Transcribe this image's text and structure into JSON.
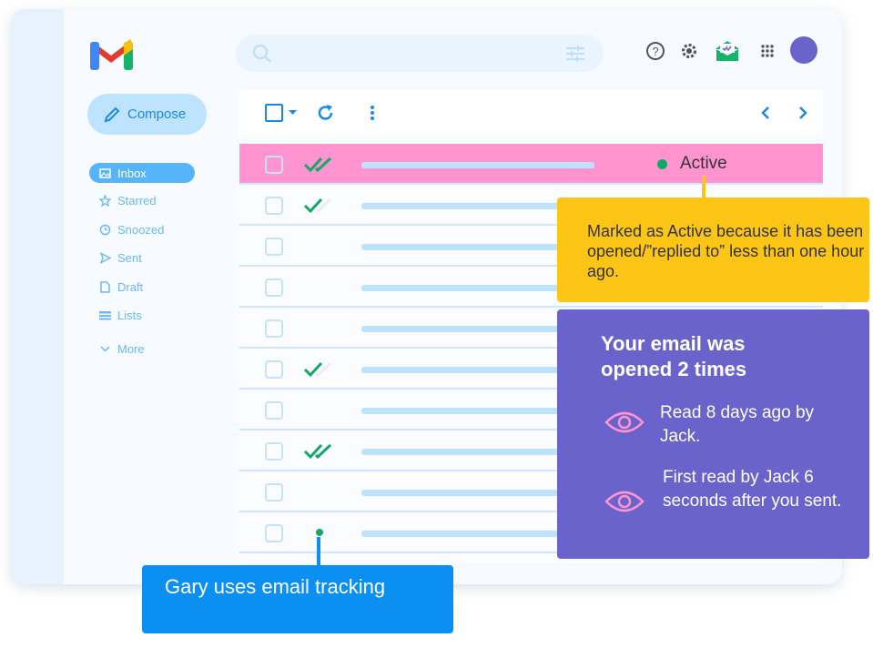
{
  "app": {
    "logo": "Gmail"
  },
  "sidebar": {
    "compose": "Compose",
    "items": [
      {
        "label": "Inbox",
        "icon": "inbox-icon"
      },
      {
        "label": "Starred",
        "icon": "star-icon"
      },
      {
        "label": "Snoozed",
        "icon": "clock-icon"
      },
      {
        "label": "Sent",
        "icon": "send-icon"
      },
      {
        "label": "Draft",
        "icon": "draft-icon"
      },
      {
        "label": "Lists",
        "icon": "lists-icon"
      },
      {
        "label": "More",
        "icon": "chevron-down-icon"
      }
    ]
  },
  "rows": [
    {
      "status": "double",
      "active": true
    },
    {
      "status": "single"
    },
    {
      "status": "none"
    },
    {
      "status": "none"
    },
    {
      "status": "none"
    },
    {
      "status": "single"
    },
    {
      "status": "none"
    },
    {
      "status": "double"
    },
    {
      "status": "none"
    },
    {
      "status": "dot"
    }
  ],
  "active_label": "Active",
  "callouts": {
    "active": "Marked as Active because it has been opened/”replied to” less than one hour ago.",
    "opens_title": "Your email was opened 2 times",
    "reads": [
      "Read 8 days ago by Jack.",
      "First read by Jack 6 seconds after you sent."
    ],
    "tracking": "Gary uses email tracking"
  },
  "colors": {
    "active_row": "#ff94d0",
    "yellow": "#fdc516",
    "purple": "#6b63cc",
    "blue": "#0b8ff0",
    "check": "#14a867"
  }
}
